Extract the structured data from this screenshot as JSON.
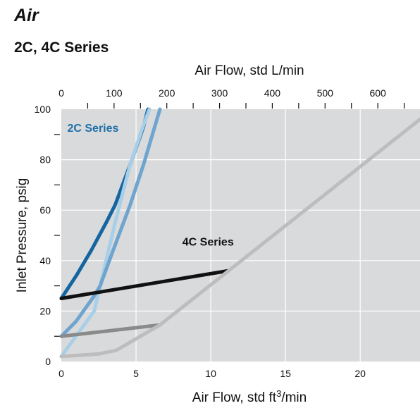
{
  "heading": "Air",
  "subheading": "2C, 4C Series",
  "chart_data": {
    "type": "line",
    "title": "",
    "xlabel_pre": "Air Flow, std ft",
    "xlabel_sup": "3",
    "xlabel_post": "/min",
    "x2label": "Air Flow, std L/min",
    "ylabel": "Inlet Pressure, psig",
    "xlim": [
      0,
      24
    ],
    "x2lim": [
      0,
      680
    ],
    "ylim": [
      0,
      100
    ],
    "x_ticks": [
      0,
      5,
      10,
      15,
      20
    ],
    "x2_ticks": [
      0,
      100,
      200,
      300,
      400,
      500,
      600
    ],
    "y_ticks": [
      0,
      20,
      40,
      60,
      80,
      100
    ],
    "grid": true,
    "background": "#d9dadb",
    "annotations": [
      {
        "text": "2C Series",
        "x": 0.4,
        "y": 91,
        "color": "#1e6fa8"
      },
      {
        "text": "4C Series",
        "x": 8.1,
        "y": 46,
        "color": "#111111"
      }
    ],
    "series": [
      {
        "color": "#1565a0",
        "points": [
          [
            0,
            25
          ],
          [
            1,
            34
          ],
          [
            2,
            44
          ],
          [
            3,
            55
          ],
          [
            3.6,
            62
          ],
          [
            4.6,
            78
          ],
          [
            5.5,
            93
          ],
          [
            5.8,
            100
          ]
        ]
      },
      {
        "color": "#a9cfe8",
        "points": [
          [
            0,
            2
          ],
          [
            2.2,
            20
          ],
          [
            2.6,
            30
          ],
          [
            3.6,
            55
          ],
          [
            4.6,
            78
          ],
          [
            5.4,
            92
          ],
          [
            5.9,
            100
          ]
        ]
      },
      {
        "color": "#6fa4cf",
        "points": [
          [
            0,
            10
          ],
          [
            1,
            16
          ],
          [
            2.2,
            26
          ],
          [
            2.6,
            30
          ],
          [
            3.4,
            43
          ],
          [
            4.6,
            62
          ],
          [
            5.5,
            78
          ],
          [
            6.2,
            92
          ],
          [
            6.6,
            100
          ]
        ]
      },
      {
        "color": "#111111",
        "points": [
          [
            0,
            25
          ],
          [
            11.2,
            36
          ]
        ]
      },
      {
        "color": "#8a8a8a",
        "points": [
          [
            0,
            10
          ],
          [
            6.6,
            14.5
          ]
        ]
      },
      {
        "color": "#bdbdbd",
        "points": [
          [
            0,
            2
          ],
          [
            2.5,
            3
          ],
          [
            3.7,
            4.5
          ],
          [
            5,
            9
          ],
          [
            6.6,
            14.5
          ],
          [
            11.2,
            36
          ],
          [
            24,
            96
          ]
        ]
      }
    ]
  }
}
